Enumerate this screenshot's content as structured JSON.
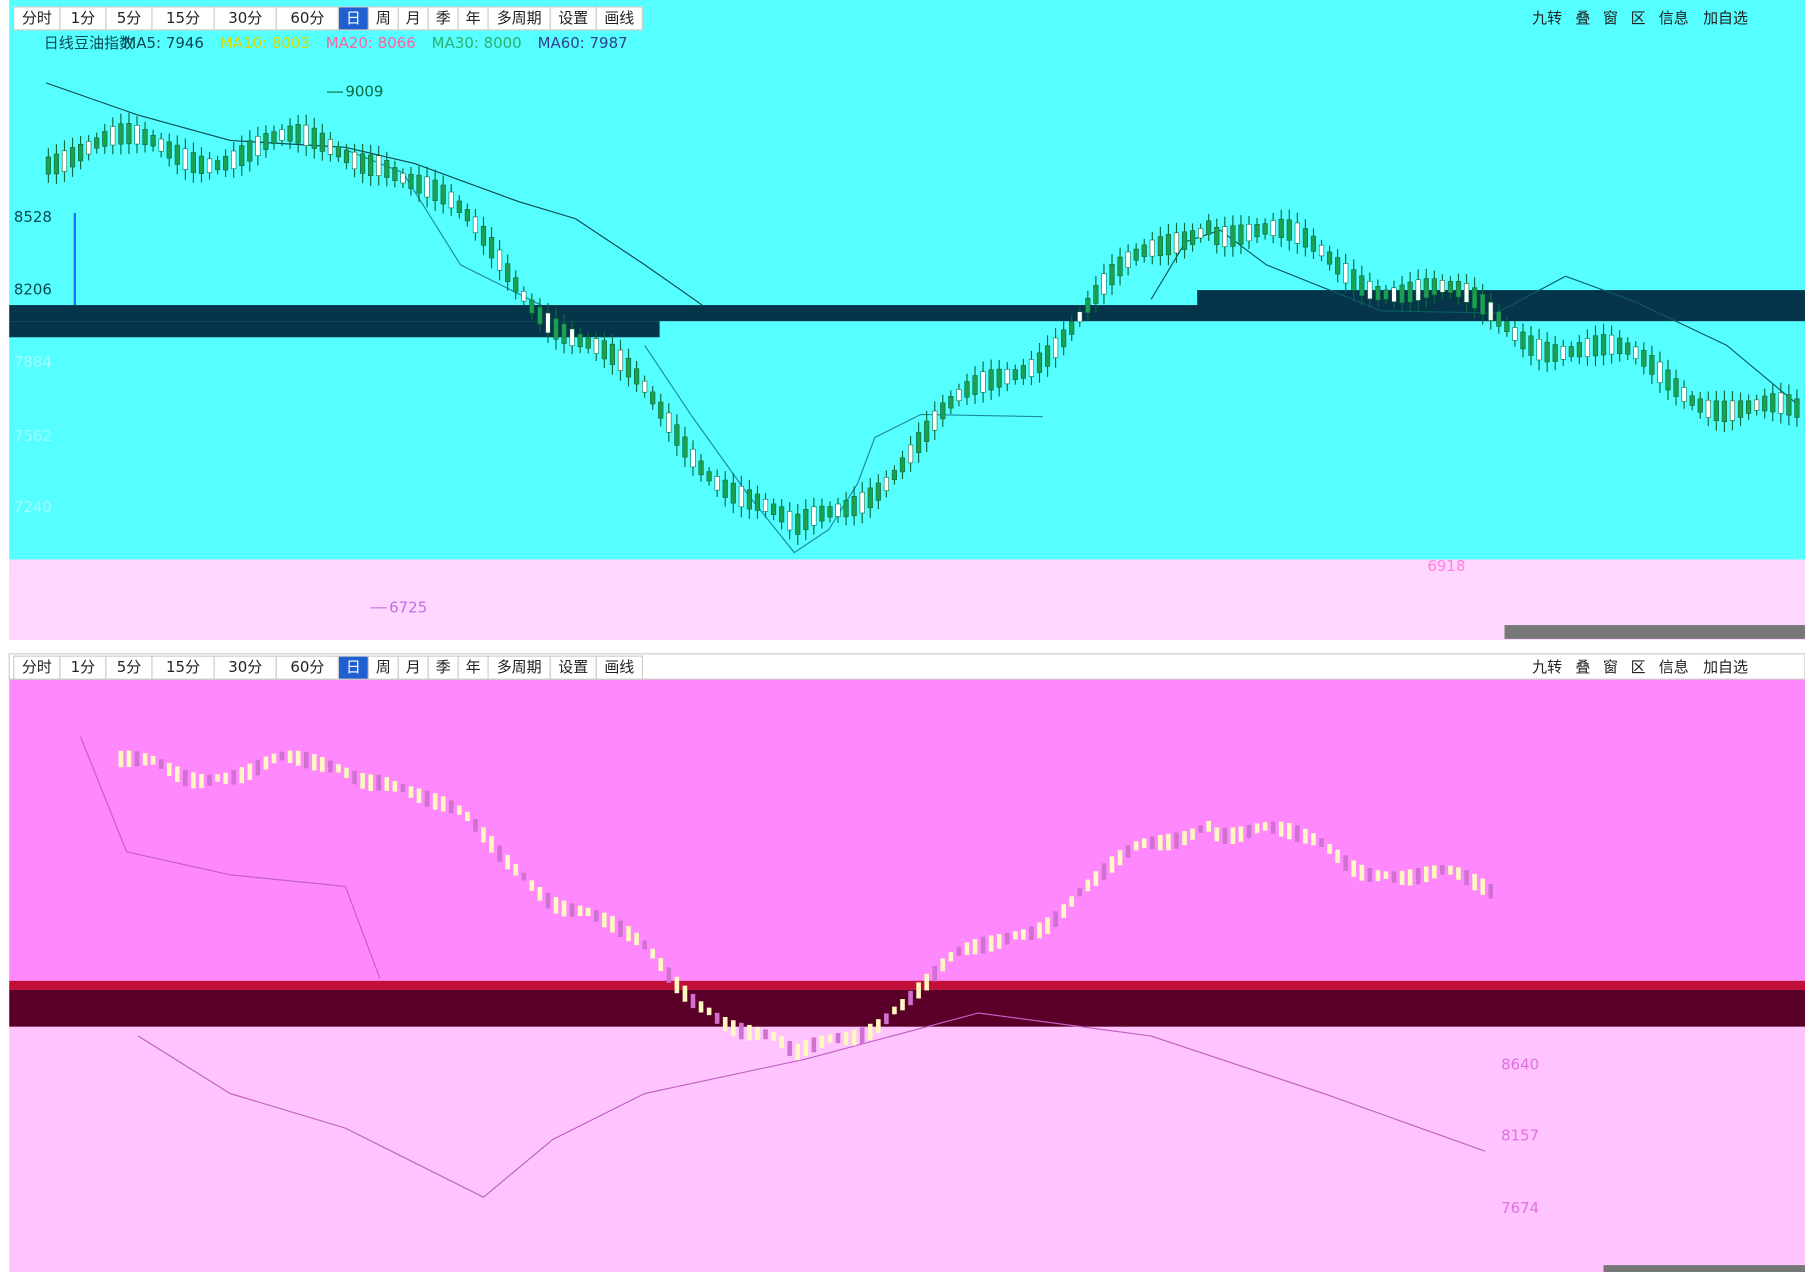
{
  "top_panel": {
    "toolbar": [
      "分时",
      "1分",
      "5分",
      "15分",
      "30分",
      "60分",
      "日",
      "周",
      "月",
      "季",
      "年",
      "多周期",
      "设置",
      "画线"
    ],
    "toolbar_right": [
      "九转",
      "叠",
      "窗",
      "区",
      "信息",
      "加自选"
    ],
    "legend": {
      "period": "日线",
      "name": "豆油指数",
      "ma": [
        "MA5: 7946",
        "MA10: 8003",
        "MA20: 8066",
        "MA30: 8000",
        "MA60: 7987"
      ]
    },
    "price_labels": [
      "8528",
      "8206",
      "7884",
      "7562",
      "7240"
    ],
    "annotations": {
      "high": "9009",
      "low": "6725",
      "local": "6918"
    }
  },
  "bottom_panel": {
    "toolbar": [
      "分时",
      "1分",
      "5分",
      "15分",
      "30分",
      "60分",
      "日",
      "周",
      "月",
      "季",
      "年",
      "多周期",
      "设置",
      "画线"
    ],
    "toolbar_right": [
      "九转",
      "叠",
      "窗",
      "区",
      "信息",
      "加自选"
    ],
    "price_labels": [
      "8640",
      "8157",
      "7674"
    ]
  }
}
